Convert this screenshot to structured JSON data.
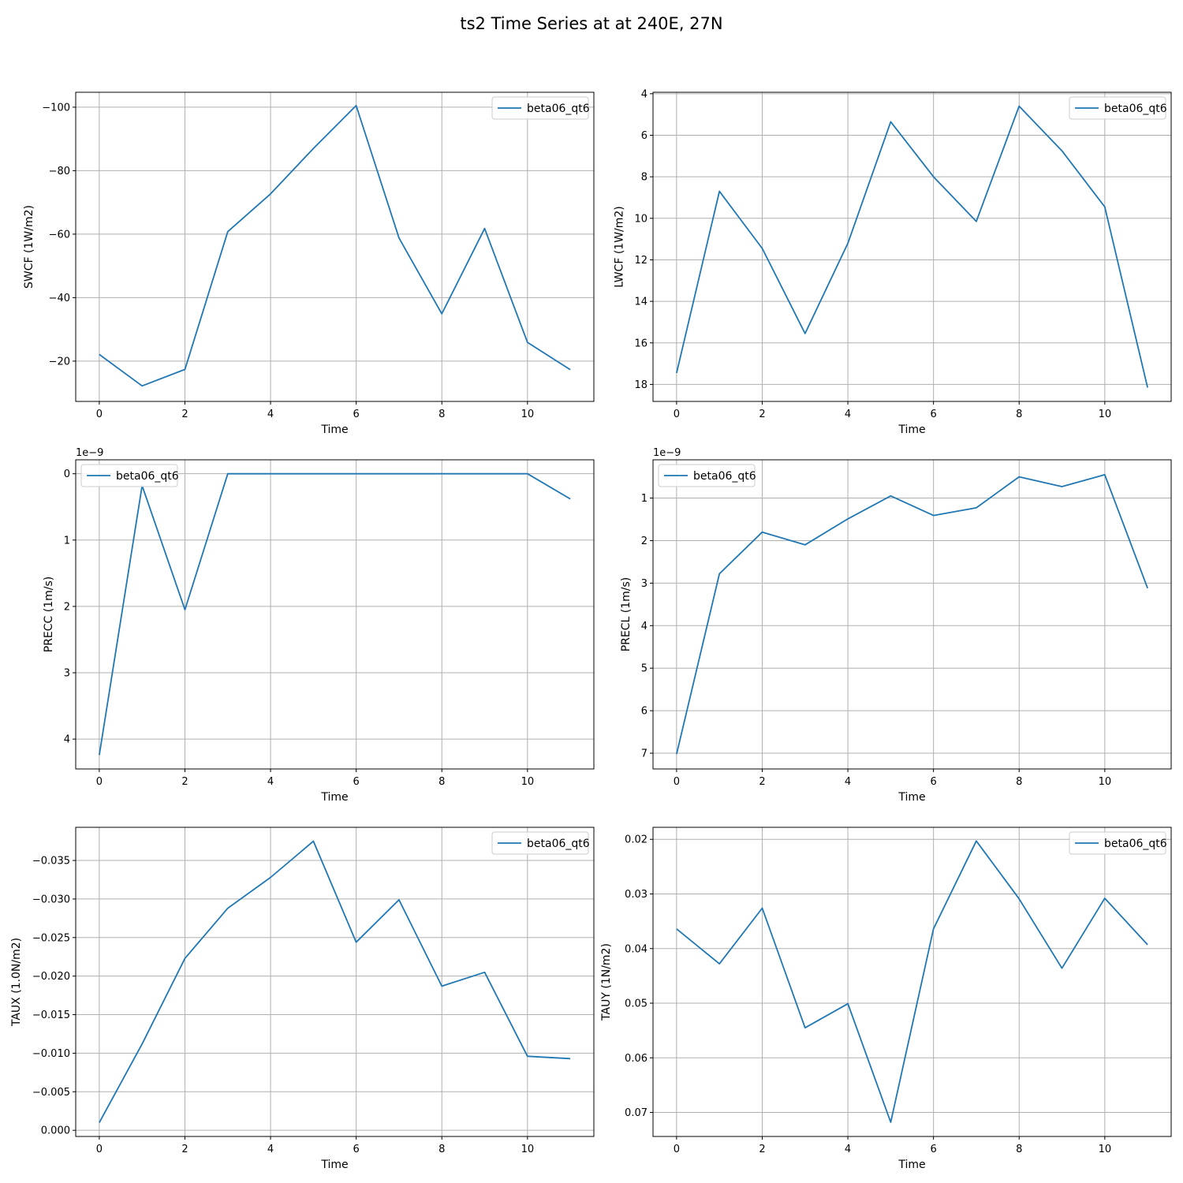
{
  "figure": {
    "title": "ts2 Time Series at at 240E, 27N",
    "line_color": "#1f77b4",
    "grid_color": "#b0b0b0"
  },
  "chart_data": [
    {
      "type": "line",
      "xlabel": "Time",
      "ylabel": "SWCF (1W/m2)",
      "x": [
        0,
        1,
        2,
        3,
        4,
        5,
        6,
        7,
        8,
        9,
        10,
        11
      ],
      "series": [
        {
          "name": "beta06_qt6",
          "values": [
            -22.1,
            -12.2,
            -17.4,
            -60.8,
            -72.7,
            -87.0,
            -100.5,
            -58.8,
            -34.9,
            -61.8,
            -25.9,
            -17.3
          ]
        }
      ],
      "xlim": [
        -0.55,
        11.55
      ],
      "ylim": [
        -7.3,
        -104.7
      ],
      "inverted_y": true,
      "xticks": [
        0,
        2,
        4,
        6,
        8,
        10
      ],
      "yticks": [
        -100,
        -80,
        -60,
        -40,
        -20
      ],
      "ytick_labels": [
        "−100",
        "−80",
        "−60",
        "−40",
        "−20"
      ],
      "offset_text": "",
      "grid": true,
      "legend": "upper right"
    },
    {
      "type": "line",
      "xlabel": "Time",
      "ylabel": "LWCF (1W/m2)",
      "x": [
        0,
        1,
        2,
        3,
        4,
        5,
        6,
        7,
        8,
        9,
        10,
        11
      ],
      "series": [
        {
          "name": "beta06_qt6",
          "values": [
            17.45,
            8.7,
            11.45,
            15.55,
            11.2,
            5.35,
            8.0,
            10.15,
            4.6,
            6.75,
            9.45,
            18.15
          ]
        }
      ],
      "xlim": [
        -0.55,
        11.55
      ],
      "ylim": [
        18.82,
        3.93
      ],
      "inverted_y": true,
      "xticks": [
        0,
        2,
        4,
        6,
        8,
        10
      ],
      "yticks": [
        4,
        6,
        8,
        10,
        12,
        14,
        16,
        18
      ],
      "ytick_labels": [
        "4",
        "6",
        "8",
        "10",
        "12",
        "14",
        "16",
        "18"
      ],
      "offset_text": "",
      "grid": true,
      "legend": "upper right"
    },
    {
      "type": "line",
      "xlabel": "Time",
      "ylabel": "PRECC (1m/s)",
      "x": [
        0,
        1,
        2,
        3,
        4,
        5,
        6,
        7,
        8,
        9,
        10,
        11
      ],
      "series": [
        {
          "name": "beta06_qt6",
          "values": [
            4.24,
            0.18,
            2.05,
            0.0,
            0.0,
            0.0,
            0.0,
            0.0,
            0.0,
            0.0,
            0.0,
            0.38
          ]
        }
      ],
      "xlim": [
        -0.55,
        11.55
      ],
      "ylim": [
        4.45,
        -0.21
      ],
      "inverted_y": true,
      "xticks": [
        0,
        2,
        4,
        6,
        8,
        10
      ],
      "yticks": [
        0,
        1,
        2,
        3,
        4
      ],
      "ytick_labels": [
        "0",
        "1",
        "2",
        "3",
        "4"
      ],
      "offset_text": "1e−9",
      "grid": true,
      "legend": "upper left"
    },
    {
      "type": "line",
      "xlabel": "Time",
      "ylabel": "PRECL (1m/s)",
      "x": [
        0,
        1,
        2,
        3,
        4,
        5,
        6,
        7,
        8,
        9,
        10,
        11
      ],
      "series": [
        {
          "name": "beta06_qt6",
          "values": [
            7.02,
            2.78,
            1.8,
            2.1,
            1.49,
            0.95,
            1.41,
            1.23,
            0.5,
            0.73,
            0.45,
            3.12
          ]
        }
      ],
      "xlim": [
        -0.55,
        11.55
      ],
      "ylim": [
        7.37,
        0.1
      ],
      "inverted_y": true,
      "xticks": [
        0,
        2,
        4,
        6,
        8,
        10
      ],
      "yticks": [
        1,
        2,
        3,
        4,
        5,
        6,
        7
      ],
      "ytick_labels": [
        "1",
        "2",
        "3",
        "4",
        "5",
        "6",
        "7"
      ],
      "offset_text": "1e−9",
      "grid": true,
      "legend": "upper left"
    },
    {
      "type": "line",
      "xlabel": "Time",
      "ylabel": "TAUX (1.0N/m2)",
      "x": [
        0,
        1,
        2,
        3,
        4,
        5,
        6,
        7,
        8,
        9,
        10,
        11
      ],
      "series": [
        {
          "name": "beta06_qt6",
          "values": [
            -0.001,
            -0.0112,
            -0.0223,
            -0.0288,
            -0.0328,
            -0.0375,
            -0.0244,
            -0.0299,
            -0.0187,
            -0.0205,
            -0.0096,
            -0.0093
          ]
        }
      ],
      "xlim": [
        -0.55,
        11.55
      ],
      "ylim": [
        0.0008,
        -0.0393
      ],
      "inverted_y": true,
      "xticks": [
        0,
        2,
        4,
        6,
        8,
        10
      ],
      "yticks": [
        -0.035,
        -0.03,
        -0.025,
        -0.02,
        -0.015,
        -0.01,
        -0.005,
        0.0
      ],
      "ytick_labels": [
        "−0.035",
        "−0.030",
        "−0.025",
        "−0.020",
        "−0.015",
        "−0.010",
        "−0.005",
        "0.000"
      ],
      "offset_text": "",
      "grid": true,
      "legend": "upper right"
    },
    {
      "type": "line",
      "xlabel": "Time",
      "ylabel": "TAUY (1N/m2)",
      "x": [
        0,
        1,
        2,
        3,
        4,
        5,
        6,
        7,
        8,
        9,
        10,
        11
      ],
      "series": [
        {
          "name": "beta06_qt6",
          "values": [
            0.0364,
            0.0428,
            0.0326,
            0.0545,
            0.0501,
            0.0718,
            0.0364,
            0.0203,
            0.0309,
            0.0436,
            0.0308,
            0.0393
          ]
        }
      ],
      "xlim": [
        -0.55,
        11.55
      ],
      "ylim": [
        0.0744,
        0.0178
      ],
      "inverted_y": true,
      "xticks": [
        0,
        2,
        4,
        6,
        8,
        10
      ],
      "yticks": [
        0.02,
        0.03,
        0.04,
        0.05,
        0.06,
        0.07
      ],
      "ytick_labels": [
        "0.02",
        "0.03",
        "0.04",
        "0.05",
        "0.06",
        "0.07"
      ],
      "offset_text": "",
      "grid": true,
      "legend": "upper right"
    }
  ]
}
